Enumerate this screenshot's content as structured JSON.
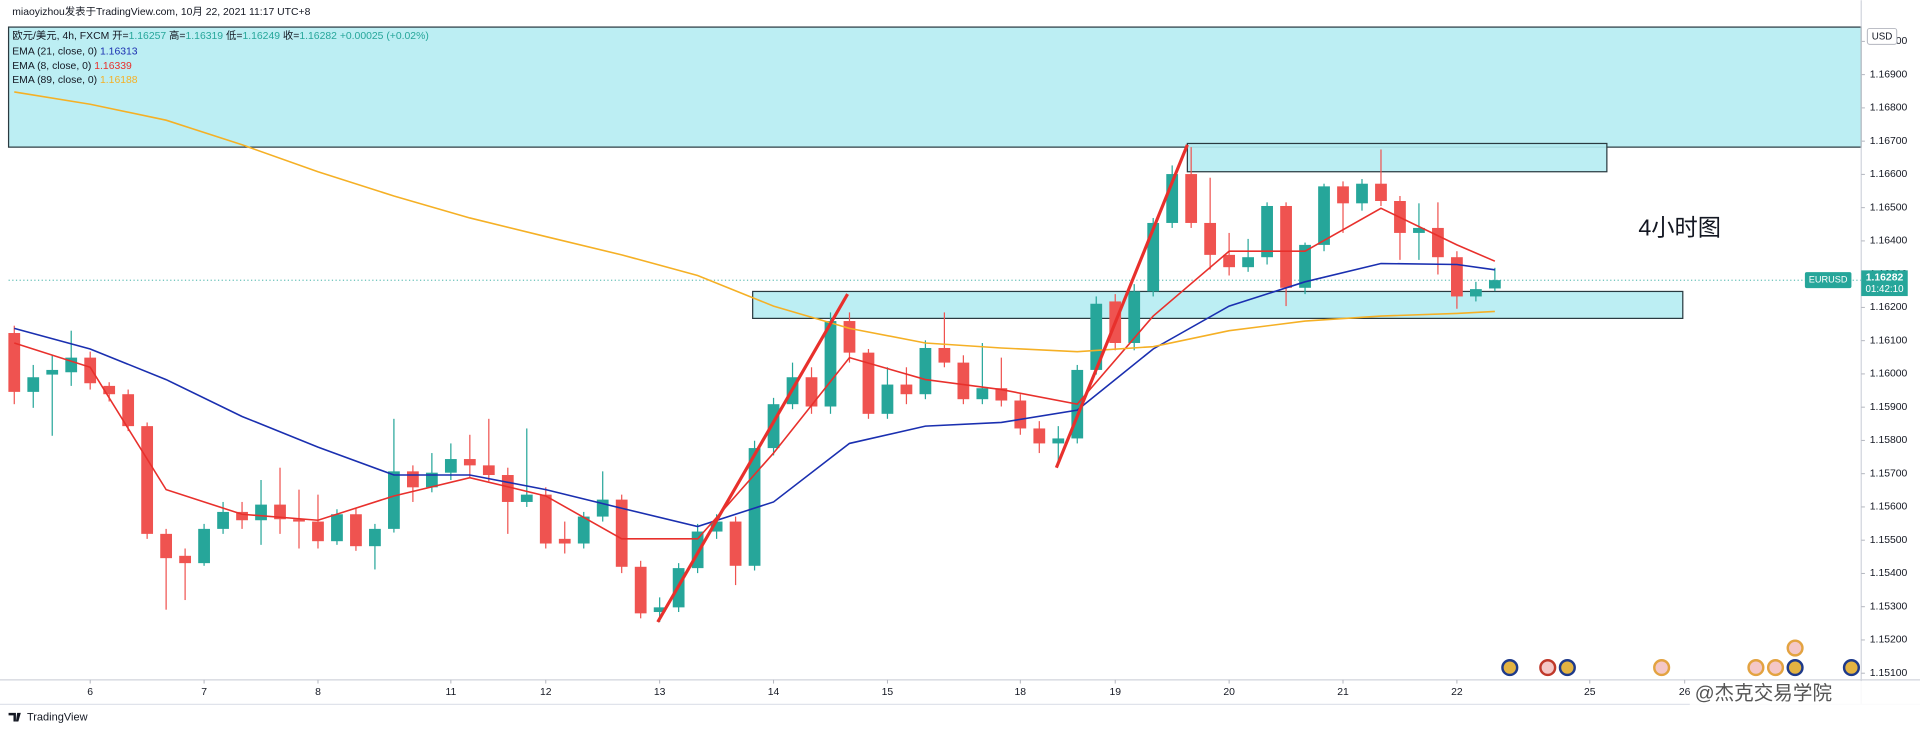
{
  "chart_data": {
    "type": "candlestick",
    "header": "miaoyizhou发表于TradingView.com, 10月 22, 2021 11:17 UTC+8",
    "symbol": "欧元/美元, 4h, FXCM",
    "ohlc_labels": [
      "开=",
      "高=",
      "低=",
      "收="
    ],
    "change": "+0.00025 (+0.02%)",
    "annotation": "4小时图",
    "currency": "USD",
    "ticker": "EURUSD",
    "countdown": "01:42:10",
    "brand": "TradingView",
    "watermark": "@杰克交易学院",
    "up_color": "#26a69a",
    "down_color": "#ef5350",
    "zone_color": "#b5ecf2",
    "trend_color": "#e8302c",
    "open": [
      1.16123,
      1.15946,
      1.15998,
      1.16005,
      1.16049,
      1.15964,
      1.15939,
      1.15843,
      1.15519,
      1.15453,
      1.15431,
      1.15534,
      1.15585,
      1.1556,
      1.15607,
      1.15563,
      1.15556,
      1.15497,
      1.15578,
      1.15482,
      1.15534,
      1.15707,
      1.15659,
      1.15703,
      1.15744,
      1.15725,
      1.15696,
      1.15615,
      1.15637,
      1.15504,
      1.1549,
      1.15571,
      1.15622,
      1.1542,
      1.15284,
      1.15298,
      1.15416,
      1.15526,
      1.15556,
      1.15423,
      1.15777,
      1.15909,
      1.1599,
      1.15902,
      1.16159,
      1.16064,
      1.1588,
      1.15968,
      1.15939,
      1.16078,
      1.16034,
      1.15924,
      1.15957,
      1.1592,
      1.15836,
      1.15791,
      1.15806,
      1.16012,
      1.16218,
      1.16093,
      1.16248,
      1.16454,
      1.16601,
      1.16454,
      1.16358,
      1.16321,
      1.16351,
      1.16505,
      1.16259,
      1.16388,
      1.16564,
      1.16513,
      1.16572,
      1.1652,
      1.16424,
      1.16439,
      1.16351,
      1.16233,
      1.16257
    ],
    "high": [
      1.16145,
      1.16027,
      1.16056,
      1.1613,
      1.16067,
      1.15975,
      1.15953,
      1.15854,
      1.15534,
      1.15475,
      1.15549,
      1.15615,
      1.15615,
      1.15681,
      1.15718,
      1.15652,
      1.15637,
      1.15593,
      1.15596,
      1.15549,
      1.15865,
      1.15725,
      1.15762,
      1.15791,
      1.15817,
      1.15865,
      1.15718,
      1.15836,
      1.15659,
      1.15556,
      1.15585,
      1.15707,
      1.15637,
      1.15438,
      1.15328,
      1.15431,
      1.15549,
      1.15578,
      1.15571,
      1.15799,
      1.15928,
      1.16034,
      1.1602,
      1.16185,
      1.16185,
      1.16075,
      1.1602,
      1.1602,
      1.16101,
      1.16185,
      1.16056,
      1.16093,
      1.16049,
      1.15939,
      1.15858,
      1.15843,
      1.16027,
      1.16233,
      1.1624,
      1.1627,
      1.16469,
      1.16627,
      1.16682,
      1.1659,
      1.16424,
      1.16406,
      1.16516,
      1.16516,
      1.16395,
      1.16572,
      1.16579,
      1.16586,
      1.16675,
      1.16535,
      1.16513,
      1.16516,
      1.16369,
      1.16277,
      1.16319
    ],
    "low": [
      1.15909,
      1.15898,
      1.15814,
      1.15964,
      1.15953,
      1.15917,
      1.15828,
      1.15504,
      1.15291,
      1.1532,
      1.15423,
      1.15519,
      1.15534,
      1.15486,
      1.15519,
      1.15475,
      1.15475,
      1.15486,
      1.15468,
      1.15412,
      1.15523,
      1.15615,
      1.15644,
      1.15681,
      1.15688,
      1.15677,
      1.15519,
      1.156,
      1.15475,
      1.1546,
      1.15475,
      1.15556,
      1.15401,
      1.15265,
      1.15254,
      1.15284,
      1.15401,
      1.15504,
      1.15365,
      1.15409,
      1.15755,
      1.15894,
      1.1588,
      1.1588,
      1.16034,
      1.15865,
      1.15865,
      1.15909,
      1.15924,
      1.1602,
      1.15909,
      1.15909,
      1.15902,
      1.15817,
      1.15762,
      1.15725,
      1.15791,
      1.15998,
      1.16071,
      1.16071,
      1.16233,
      1.16439,
      1.16439,
      1.16314,
      1.16296,
      1.16307,
      1.16329,
      1.16204,
      1.1624,
      1.16369,
      1.16424,
      1.16491,
      1.16505,
      1.16343,
      1.16343,
      1.16299,
      1.16196,
      1.16218,
      1.16249
    ],
    "close": [
      1.15946,
      1.1599,
      1.16012,
      1.16049,
      1.15972,
      1.15939,
      1.15843,
      1.15519,
      1.15446,
      1.15431,
      1.15534,
      1.15585,
      1.1556,
      1.15607,
      1.15563,
      1.15556,
      1.15497,
      1.15578,
      1.15482,
      1.15534,
      1.15707,
      1.15659,
      1.15703,
      1.15744,
      1.15725,
      1.15696,
      1.15615,
      1.15637,
      1.1549,
      1.1549,
      1.15571,
      1.15622,
      1.1542,
      1.1528,
      1.15298,
      1.15416,
      1.15526,
      1.15556,
      1.15423,
      1.15777,
      1.15909,
      1.1599,
      1.15902,
      1.16159,
      1.16064,
      1.1588,
      1.15968,
      1.15939,
      1.16078,
      1.16034,
      1.15924,
      1.15957,
      1.1592,
      1.15836,
      1.15791,
      1.15806,
      1.16012,
      1.16211,
      1.16093,
      1.16248,
      1.16454,
      1.16601,
      1.16454,
      1.16358,
      1.16321,
      1.16351,
      1.16505,
      1.16259,
      1.16388,
      1.16564,
      1.16513,
      1.16572,
      1.1652,
      1.16424,
      1.16439,
      1.16351,
      1.16233,
      1.16255,
      1.16282
    ],
    "series": [
      {
        "name": "EMA (21, close, 0)",
        "color": "#1a2fb0",
        "x": [
          0,
          4,
          8,
          12,
          16,
          20,
          24,
          28,
          32,
          36,
          40,
          44,
          48,
          52,
          56,
          60,
          64,
          68,
          72,
          76,
          78
        ],
        "values": [
          1.16137,
          1.16075,
          1.15983,
          1.15872,
          1.1578,
          1.15696,
          1.15696,
          1.15652,
          1.15596,
          1.15541,
          1.15615,
          1.15791,
          1.15843,
          1.15854,
          1.15891,
          1.16075,
          1.16204,
          1.16277,
          1.16332,
          1.16329,
          1.16313
        ]
      },
      {
        "name": "EMA (8, close, 0)",
        "color": "#e8302c",
        "x": [
          0,
          4,
          8,
          12,
          16,
          20,
          24,
          28,
          32,
          36,
          40,
          44,
          48,
          52,
          56,
          60,
          64,
          68,
          72,
          76,
          78
        ],
        "values": [
          1.16093,
          1.1602,
          1.15652,
          1.15578,
          1.1556,
          1.15633,
          1.15688,
          1.15633,
          1.15504,
          1.15504,
          1.15762,
          1.16049,
          1.15983,
          1.15953,
          1.15909,
          1.16174,
          1.16369,
          1.16369,
          1.16498,
          1.16388,
          1.16339
        ]
      },
      {
        "name": "EMA (89, close, 0)",
        "color": "#f5b025",
        "x": [
          0,
          4,
          8,
          12,
          16,
          20,
          24,
          28,
          32,
          36,
          40,
          44,
          48,
          52,
          56,
          60,
          64,
          68,
          72,
          76,
          78
        ],
        "values": [
          1.16848,
          1.16811,
          1.16763,
          1.16689,
          1.16608,
          1.16535,
          1.16469,
          1.16413,
          1.16358,
          1.16296,
          1.16204,
          1.16137,
          1.16093,
          1.16078,
          1.16067,
          1.16082,
          1.1613,
          1.16159,
          1.16174,
          1.16182,
          1.16188
        ]
      }
    ],
    "zones": [
      {
        "y": [
          1.17043,
          1.16682
        ]
      },
      {
        "x": [
          61.8,
          83.9
        ],
        "y": [
          1.16693,
          1.16608
        ]
      },
      {
        "x": [
          38.9,
          87.9
        ],
        "y": [
          1.16248,
          1.16167
        ]
      }
    ],
    "trend_lines": [
      {
        "x": [
          33.9,
          43.9
        ],
        "y": [
          1.15254,
          1.1624
        ]
      },
      {
        "x": [
          54.9,
          61.8
        ],
        "y": [
          1.15718,
          1.16689
        ]
      }
    ],
    "xlim": [
      -0.3,
      97.3
    ],
    "xticks": [
      {
        "value": 4,
        "label": "6"
      },
      {
        "value": 10,
        "label": "7"
      },
      {
        "value": 16,
        "label": "8"
      },
      {
        "value": 23,
        "label": "11"
      },
      {
        "value": 28,
        "label": "12"
      },
      {
        "value": 34,
        "label": "13"
      },
      {
        "value": 40,
        "label": "14"
      },
      {
        "value": 46,
        "label": "15"
      },
      {
        "value": 53,
        "label": "18"
      },
      {
        "value": 58,
        "label": "19"
      },
      {
        "value": 64,
        "label": "20"
      },
      {
        "value": 70,
        "label": "21"
      },
      {
        "value": 76,
        "label": "22"
      },
      {
        "value": 83,
        "label": "25"
      },
      {
        "value": 88,
        "label": "26"
      }
    ],
    "ylim": [
      1.1508,
      1.1705
    ],
    "yticks": [
      {
        "value": 1.151,
        "label": "1.15100"
      },
      {
        "value": 1.152,
        "label": "1.15200"
      },
      {
        "value": 1.153,
        "label": "1.15300"
      },
      {
        "value": 1.154,
        "label": "1.15400"
      },
      {
        "value": 1.155,
        "label": "1.15500"
      },
      {
        "value": 1.156,
        "label": "1.15600"
      },
      {
        "value": 1.157,
        "label": "1.15700"
      },
      {
        "value": 1.158,
        "label": "1.15800"
      },
      {
        "value": 1.159,
        "label": "1.15900"
      },
      {
        "value": 1.16,
        "label": "1.16000"
      },
      {
        "value": 1.161,
        "label": "1.16100"
      },
      {
        "value": 1.162,
        "label": "1.16200"
      },
      {
        "value": 1.163,
        "label": "1.16300"
      },
      {
        "value": 1.164,
        "label": "1.16400"
      },
      {
        "value": 1.165,
        "label": "1.16500"
      },
      {
        "value": 1.166,
        "label": "1.16600"
      },
      {
        "value": 1.167,
        "label": "1.16700"
      },
      {
        "value": 1.168,
        "label": "1.16800"
      },
      {
        "value": 1.169,
        "label": "1.16900"
      },
      {
        "value": 1.17,
        "label": "1.17000"
      }
    ]
  }
}
